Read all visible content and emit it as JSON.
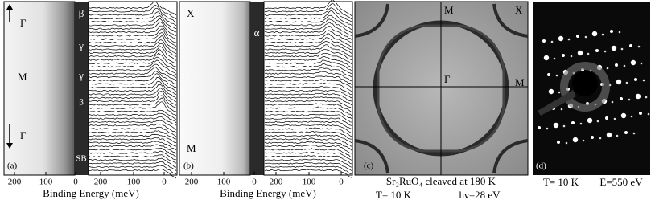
{
  "panels": [
    {
      "label": "(a)",
      "symmetry_labels": [
        "Γ",
        "M",
        "Γ"
      ],
      "band_labels": [
        "β",
        "γ",
        "γ",
        "β",
        "SB"
      ],
      "xticks": [
        "200",
        "100",
        "0",
        "200",
        "100",
        "0"
      ],
      "xlabel": "Binding Energy (meV)"
    },
    {
      "label": "(b)",
      "symmetry_labels": [
        "X",
        "M"
      ],
      "band_labels": [
        "α"
      ],
      "xticks": [
        "200",
        "100",
        "0",
        "200",
        "100",
        "0"
      ],
      "xlabel": "Binding Energy (meV)"
    },
    {
      "label": "(c)",
      "symmetry_labels": [
        "M",
        "X",
        "Γ",
        "M"
      ],
      "caption": [
        "Sr₂RuO₄ cleaved at 180 K",
        "T= 10 K",
        "hν=28 eV"
      ]
    },
    {
      "label": "(d)",
      "caption": [
        "T= 10 K",
        "E=550 eV"
      ]
    }
  ]
}
